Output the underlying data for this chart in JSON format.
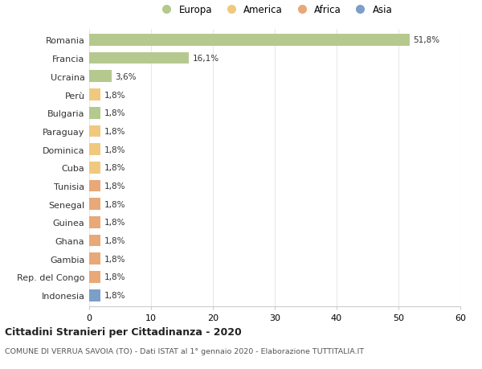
{
  "countries": [
    "Romania",
    "Francia",
    "Ucraina",
    "Perù",
    "Bulgaria",
    "Paraguay",
    "Dominica",
    "Cuba",
    "Tunisia",
    "Senegal",
    "Guinea",
    "Ghana",
    "Gambia",
    "Rep. del Congo",
    "Indonesia"
  ],
  "values": [
    51.8,
    16.1,
    3.6,
    1.8,
    1.8,
    1.8,
    1.8,
    1.8,
    1.8,
    1.8,
    1.8,
    1.8,
    1.8,
    1.8,
    1.8
  ],
  "labels": [
    "51,8%",
    "16,1%",
    "3,6%",
    "1,8%",
    "1,8%",
    "1,8%",
    "1,8%",
    "1,8%",
    "1,8%",
    "1,8%",
    "1,8%",
    "1,8%",
    "1,8%",
    "1,8%",
    "1,8%"
  ],
  "continents": [
    "Europa",
    "Europa",
    "Europa",
    "America",
    "Europa",
    "America",
    "America",
    "America",
    "Africa",
    "Africa",
    "Africa",
    "Africa",
    "Africa",
    "Africa",
    "Asia"
  ],
  "colors": {
    "Europa": "#b5c98e",
    "America": "#f0c97f",
    "Africa": "#e8a878",
    "Asia": "#7b9fc7"
  },
  "legend_order": [
    "Europa",
    "America",
    "Africa",
    "Asia"
  ],
  "legend_colors": [
    "#b5c98e",
    "#f0c97f",
    "#e8a878",
    "#7b9fc7"
  ],
  "xlim": [
    0,
    60
  ],
  "xticks": [
    0,
    10,
    20,
    30,
    40,
    50,
    60
  ],
  "title": "Cittadini Stranieri per Cittadinanza - 2020",
  "subtitle": "COMUNE DI VERRUA SAVOIA (TO) - Dati ISTAT al 1° gennaio 2020 - Elaborazione TUTTITALIA.IT",
  "background_color": "#ffffff",
  "grid_color": "#e8e8e8",
  "bar_height": 0.65
}
